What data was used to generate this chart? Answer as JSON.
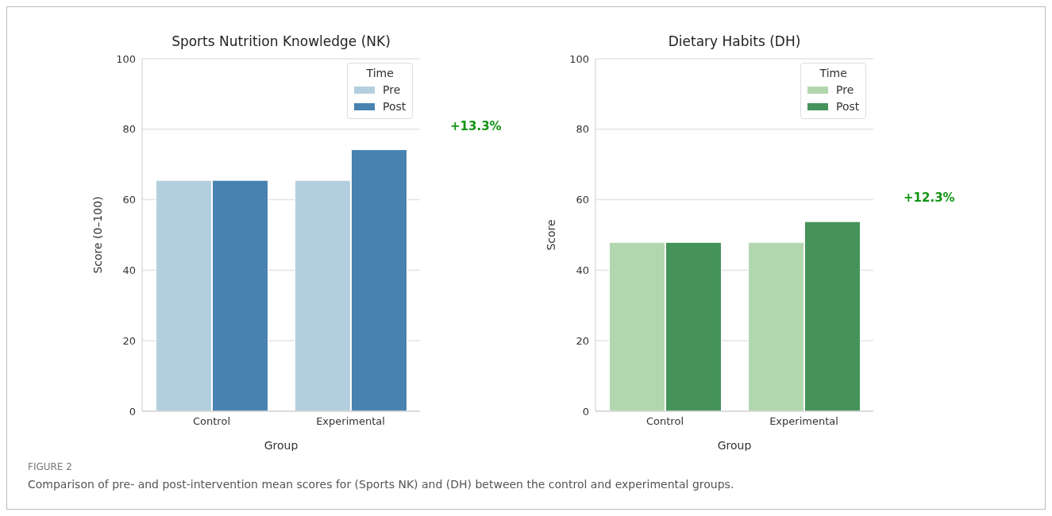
{
  "chart_data": [
    {
      "type": "bar",
      "title": "Sports Nutrition Knowledge (NK)",
      "xlabel": "Group",
      "ylabel": "Score (0–100)",
      "legend_title": "Time",
      "categories": [
        "Control",
        "Experimental"
      ],
      "series": [
        {
          "name": "Pre",
          "color": "#b3cfdf",
          "values": [
            65.5,
            65.5
          ]
        },
        {
          "name": "Post",
          "color": "#4882b0",
          "values": [
            65.5,
            74.2
          ]
        }
      ],
      "ylim": [
        0,
        100
      ],
      "yticks": [
        0,
        20,
        40,
        60,
        80,
        100
      ],
      "grid": "y",
      "legend": "top right",
      "annotations": [
        "+13.3%"
      ]
    },
    {
      "type": "bar",
      "title": "Dietary Habits (DH)",
      "xlabel": "Group",
      "ylabel": "Score",
      "legend_title": "Time",
      "categories": [
        "Control",
        "Experimental"
      ],
      "series": [
        {
          "name": "Pre",
          "color": "#b2d7ae",
          "values": [
            47.9,
            47.9
          ]
        },
        {
          "name": "Post",
          "color": "#45935a",
          "values": [
            47.9,
            53.8
          ]
        }
      ],
      "ylim": [
        0,
        100
      ],
      "yticks": [
        0,
        20,
        40,
        60,
        80,
        100
      ],
      "grid": "y",
      "legend": "top right",
      "annotations": [
        "+12.3%",
        "FIGURE 2",
        "Comparison of pre- and post-intervention mean scores for (Sports NK) and (DH) between the control and experimental groups."
      ]
    }
  ]
}
